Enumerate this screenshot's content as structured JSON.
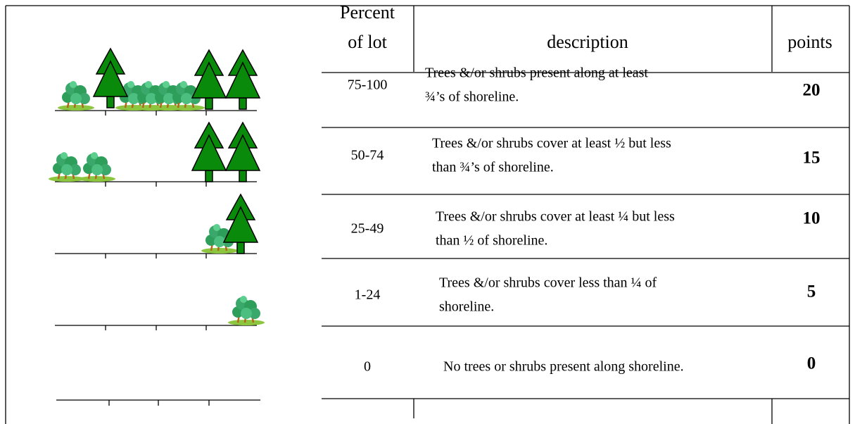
{
  "header": {
    "percent": [
      "Percent",
      "of lot"
    ],
    "description": "description",
    "points": "points"
  },
  "rows": [
    {
      "percent": "75-100",
      "description": [
        "Trees &/or shrubs present along at least",
        "¾’s of shoreline."
      ],
      "points": "20"
    },
    {
      "percent": "50-74",
      "description": [
        "Trees &/or shrubs cover at least ½ but less",
        "than ¾’s of shoreline."
      ],
      "points": "15"
    },
    {
      "percent": "25-49",
      "description": [
        "Trees &/or shrubs cover at least ¼ but less",
        "than ½ of shoreline."
      ],
      "points": "10"
    },
    {
      "percent": "1-24",
      "description": [
        "Trees &/or shrubs cover less than ¼ of",
        "shoreline."
      ],
      "points": "5"
    },
    {
      "percent": "0",
      "description": [
        "No trees or shrubs present along shoreline."
      ],
      "points": "0"
    }
  ]
}
